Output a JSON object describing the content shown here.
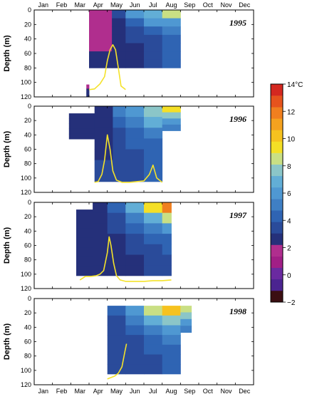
{
  "chart_data": [
    {
      "type": "heatmap",
      "title": "1995",
      "ylabel": "Depth (m)",
      "ylim": [
        120,
        0
      ],
      "months": [
        "Jan",
        "Feb",
        "Mar",
        "Apr",
        "May",
        "Jun",
        "Jul",
        "Aug",
        "Sep",
        "Oct",
        "Nov",
        "Dec"
      ],
      "yticks": [
        0,
        20,
        40,
        60,
        80,
        100,
        120
      ],
      "data_columns": [
        {
          "start": 2.85,
          "end": 3.0,
          "top": 80,
          "bottom": 120,
          "values": [
            null,
            null,
            null,
            null,
            2.0,
            2.3,
            2.5
          ]
        },
        {
          "start": 3.0,
          "end": 4.25,
          "top": 0,
          "bottom": 80,
          "values": [
            1.5,
            1.6,
            1.8,
            2.0,
            2.2,
            2.3,
            2.4
          ]
        },
        {
          "start": 4.25,
          "end": 5.0,
          "top": 0,
          "bottom": 80,
          "values": [
            3.5,
            3.0,
            2.6,
            2.4,
            2.3,
            2.3,
            2.4
          ]
        },
        {
          "start": 5.0,
          "end": 6.0,
          "top": 0,
          "bottom": 80,
          "values": [
            6.0,
            4.5,
            3.6,
            3.2,
            3.0,
            3.0,
            3.0
          ]
        },
        {
          "start": 6.0,
          "end": 7.0,
          "top": 0,
          "bottom": 80,
          "values": [
            7.0,
            5.6,
            4.4,
            3.8,
            3.6,
            3.6,
            3.8
          ]
        },
        {
          "start": 7.0,
          "end": 8.0,
          "top": 0,
          "bottom": 80,
          "values": [
            8.2,
            6.4,
            5.0,
            4.4,
            4.2,
            4.2,
            4.4
          ]
        }
      ],
      "line": {
        "name": "",
        "x": [
          3.0,
          3.3,
          3.6,
          3.85,
          4.0,
          4.15,
          4.3,
          4.45,
          4.6,
          4.75,
          4.9,
          5.0
        ],
        "depth": [
          110,
          109,
          102,
          92,
          70,
          55,
          48,
          55,
          80,
          105,
          108,
          110
        ]
      }
    },
    {
      "type": "heatmap",
      "title": "1996",
      "ylabel": "Depth (m)",
      "ylim": [
        120,
        0
      ],
      "months": [
        "Jan",
        "Feb",
        "Mar",
        "Apr",
        "May",
        "Jun",
        "Jul",
        "Aug",
        "Sep",
        "Oct",
        "Nov",
        "Dec"
      ],
      "yticks": [
        0,
        20,
        40,
        60,
        80,
        100,
        120
      ],
      "data_columns": [
        {
          "start": 1.9,
          "end": 3.3,
          "top": 10,
          "bottom": 60,
          "values": [
            2.4,
            2.4,
            2.4,
            2.4,
            2.4,
            null,
            null
          ]
        },
        {
          "start": 3.3,
          "end": 4.3,
          "top": 0,
          "bottom": 105,
          "values": [
            2.8,
            2.8,
            2.8,
            3.0,
            3.0,
            3.2,
            3.2
          ]
        },
        {
          "start": 4.3,
          "end": 5.0,
          "top": 0,
          "bottom": 105,
          "values": [
            4.8,
            4.2,
            3.8,
            3.6,
            3.5,
            3.5,
            3.5
          ]
        },
        {
          "start": 5.0,
          "end": 6.0,
          "top": 0,
          "bottom": 105,
          "values": [
            6.4,
            5.2,
            4.4,
            4.0,
            3.8,
            3.8,
            3.8
          ]
        },
        {
          "start": 6.0,
          "end": 7.0,
          "top": 0,
          "bottom": 105,
          "values": [
            8.0,
            6.6,
            5.2,
            4.6,
            4.2,
            4.2,
            4.2
          ]
        },
        {
          "start": 7.0,
          "end": 8.0,
          "top": 0,
          "bottom": 60,
          "values": [
            9.4,
            8.0,
            6.0,
            5.0,
            null,
            null,
            null
          ]
        }
      ],
      "line": {
        "name": "",
        "x": [
          3.3,
          3.5,
          3.7,
          3.85,
          4.0,
          4.15,
          4.3,
          4.5,
          4.8,
          5.2,
          5.6,
          6.0,
          6.3,
          6.5,
          6.7,
          7.0
        ],
        "depth": [
          106,
          105,
          95,
          75,
          40,
          60,
          90,
          103,
          106,
          106,
          105,
          104,
          95,
          82,
          100,
          106
        ]
      }
    },
    {
      "type": "heatmap",
      "title": "1997",
      "ylabel": "Depth (m)",
      "ylim": [
        120,
        0
      ],
      "months": [
        "Jan",
        "Feb",
        "Mar",
        "Apr",
        "May",
        "Jun",
        "Jul",
        "Aug",
        "Sep",
        "Oct",
        "Nov",
        "Dec"
      ],
      "yticks": [
        0,
        20,
        40,
        60,
        80,
        100,
        120
      ],
      "data_columns": [
        {
          "start": 2.3,
          "end": 3.2,
          "top": 10,
          "bottom": 102,
          "values": [
            2.4,
            2.4,
            2.4,
            2.4,
            2.4,
            2.4,
            2.4
          ]
        },
        {
          "start": 3.2,
          "end": 4.0,
          "top": 0,
          "bottom": 102,
          "values": [
            2.8,
            2.6,
            2.6,
            2.6,
            2.6,
            2.6,
            2.6
          ]
        },
        {
          "start": 4.0,
          "end": 5.0,
          "top": 0,
          "bottom": 102,
          "values": [
            4.2,
            3.8,
            3.4,
            3.0,
            2.8,
            2.6,
            2.6
          ]
        },
        {
          "start": 5.0,
          "end": 6.0,
          "top": 0,
          "bottom": 102,
          "values": [
            7.0,
            5.4,
            4.2,
            3.6,
            3.2,
            3.0,
            3.0
          ]
        },
        {
          "start": 6.0,
          "end": 7.0,
          "top": 0,
          "bottom": 102,
          "values": [
            9.0,
            7.0,
            5.0,
            4.0,
            3.6,
            3.4,
            3.4
          ]
        },
        {
          "start": 7.0,
          "end": 7.5,
          "top": 0,
          "bottom": 102,
          "values": [
            11.5,
            8.6,
            6.0,
            4.6,
            4.0,
            3.8,
            3.8
          ]
        }
      ],
      "line": {
        "name": "",
        "x": [
          2.5,
          2.8,
          3.1,
          3.4,
          3.6,
          3.8,
          4.0,
          4.1,
          4.2,
          4.35,
          4.5,
          4.7,
          5.0,
          5.5,
          6.0,
          6.5,
          7.0,
          7.5
        ],
        "depth": [
          108,
          103,
          103,
          102,
          100,
          95,
          70,
          48,
          60,
          85,
          102,
          108,
          110,
          110,
          110,
          109,
          109,
          108
        ]
      }
    },
    {
      "type": "heatmap",
      "title": "1998",
      "ylabel": "Depth (m)",
      "ylim": [
        120,
        0
      ],
      "months": [
        "Jan",
        "Feb",
        "Mar",
        "Apr",
        "May",
        "Jun",
        "Jul",
        "Aug",
        "Sep",
        "Oct",
        "Nov",
        "Dec"
      ],
      "yticks": [
        0,
        20,
        40,
        60,
        80,
        100,
        120
      ],
      "data_columns": [
        {
          "start": 4.0,
          "end": 5.0,
          "top": 10,
          "bottom": 105,
          "values": [
            4.4,
            3.8,
            3.6,
            3.4,
            3.2,
            3.2,
            3.2
          ]
        },
        {
          "start": 5.0,
          "end": 6.0,
          "top": 10,
          "bottom": 105,
          "values": [
            6.0,
            4.8,
            4.2,
            3.8,
            3.6,
            3.4,
            3.4
          ]
        },
        {
          "start": 6.0,
          "end": 7.0,
          "top": 10,
          "bottom": 105,
          "values": [
            8.4,
            6.6,
            5.0,
            4.4,
            4.0,
            3.8,
            3.8
          ]
        },
        {
          "start": 7.0,
          "end": 8.0,
          "top": 10,
          "bottom": 105,
          "values": [
            10.6,
            8.0,
            6.0,
            5.0,
            4.4,
            4.2,
            4.2
          ]
        },
        {
          "start": 8.0,
          "end": 8.6,
          "top": 10,
          "bottom": 75,
          "values": [
            8.8,
            7.6,
            6.4,
            5.4,
            null,
            null,
            null
          ]
        }
      ],
      "line": {
        "name": "",
        "x": [
          4.0,
          4.2,
          4.4,
          4.6,
          4.8,
          4.95,
          5.05
        ],
        "depth": [
          112,
          110,
          108,
          104,
          95,
          75,
          63
        ]
      }
    }
  ],
  "colorbar": {
    "unit": "°C",
    "top_label": "14°C",
    "labels": [
      "12",
      "10",
      "8",
      "6",
      "4",
      "2",
      "0",
      "−2"
    ],
    "ticks": [
      14,
      12,
      10,
      8,
      6,
      4,
      2,
      0,
      -2
    ],
    "min": -2,
    "max": 14,
    "colors": [
      "#3b0f12",
      "#4b2490",
      "#6a2aa0",
      "#a11f86",
      "#b02e8e",
      "#25307a",
      "#2a4b9a",
      "#2f64b3",
      "#3f7fc4",
      "#4f98d2",
      "#62aed6",
      "#8bc6c8",
      "#c9df84",
      "#f4df26",
      "#f6c21f",
      "#f4a21f",
      "#f07f1f",
      "#e6531d",
      "#d42820"
    ]
  }
}
